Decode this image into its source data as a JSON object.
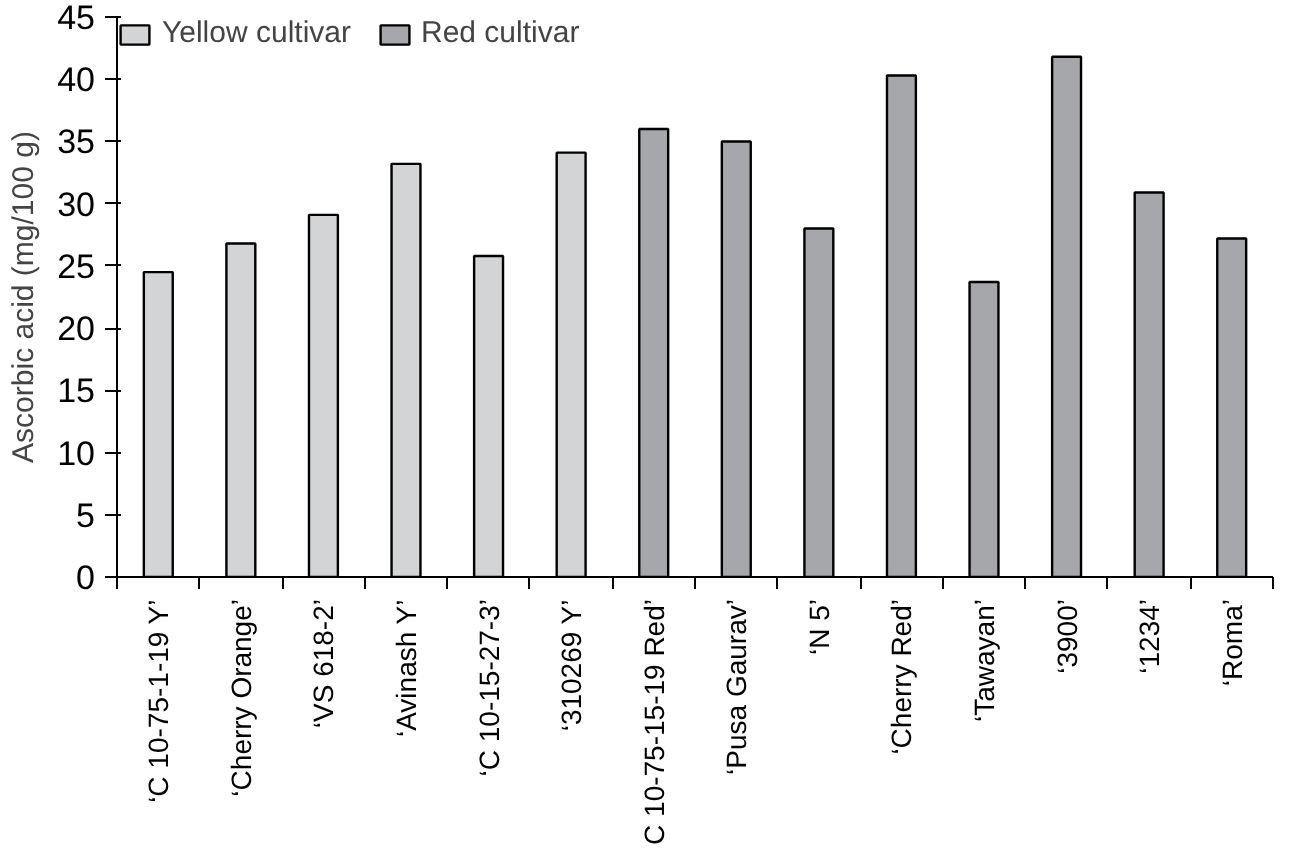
{
  "chart_data": {
    "type": "bar",
    "ylabel": "Ascorbic acid (mg/100 g)",
    "categories": [
      "‘C 10-75-1-19 Y’",
      "‘Cherry Orange’",
      "‘VS 618-2’",
      "‘Avinash Y’",
      "‘C 10-15-27-3’",
      "‘310269 Y’",
      "C 10-75-15-19 Red’",
      "‘Pusa Gaurav’",
      "‘N 5’",
      "‘Cherry Red’",
      "‘Tawayan’",
      "‘3900’",
      "‘1234’",
      "‘Roma’"
    ],
    "series": [
      {
        "name": "Yellow cultivar",
        "color": "#d3d4d6",
        "values": [
          24.5,
          26.8,
          29.1,
          33.2,
          25.8,
          34.1,
          null,
          null,
          null,
          null,
          null,
          null,
          null,
          null
        ]
      },
      {
        "name": "Red cultivar",
        "color": "#a6a7aa",
        "values": [
          null,
          null,
          null,
          null,
          null,
          null,
          36.0,
          35.0,
          28.0,
          40.3,
          23.7,
          41.8,
          30.9,
          27.2
        ]
      }
    ],
    "ylim": [
      0,
      45
    ],
    "yticks": [
      0,
      5,
      10,
      15,
      20,
      25,
      30,
      35,
      40,
      45
    ],
    "legend": "top left"
  }
}
